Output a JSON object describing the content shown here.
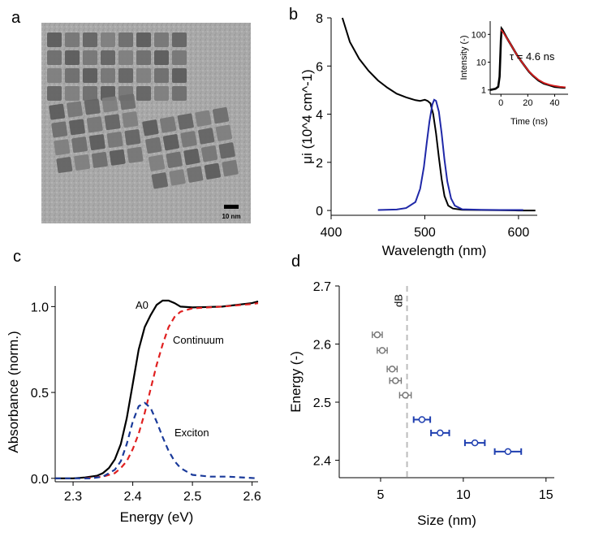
{
  "figure": {
    "panel_letters": [
      "a",
      "b",
      "c",
      "d"
    ],
    "tem": {
      "scale_bar_label": "10 nm"
    }
  },
  "chart_data": [
    {
      "type": "line",
      "panel": "b",
      "xlabel": "Wavelength (nm)",
      "ylabel": "μi (10^4 cm^-1)",
      "xlim": [
        400,
        620
      ],
      "ylim": [
        -0.2,
        8
      ],
      "xticks": [
        400,
        500,
        600
      ],
      "yticks": [
        0,
        2,
        4,
        6,
        8
      ],
      "series": [
        {
          "color": "#000000",
          "x": [
            412,
            420,
            430,
            440,
            450,
            460,
            470,
            480,
            490,
            495,
            500,
            503,
            506,
            509,
            512,
            515,
            518,
            521,
            525,
            530,
            540,
            560,
            580,
            600,
            618
          ],
          "y": [
            8.0,
            7.0,
            6.3,
            5.8,
            5.4,
            5.1,
            4.85,
            4.7,
            4.58,
            4.55,
            4.6,
            4.55,
            4.45,
            4.0,
            3.2,
            2.2,
            1.3,
            0.6,
            0.2,
            0.08,
            0.03,
            0.02,
            0.01,
            0.0,
            0.0
          ]
        },
        {
          "color": "#1f28a8",
          "x": [
            450,
            470,
            480,
            490,
            495,
            499,
            502,
            505,
            508,
            510,
            512,
            515,
            518,
            521,
            524,
            528,
            532,
            540,
            560,
            580,
            605
          ],
          "y": [
            0.02,
            0.04,
            0.1,
            0.35,
            0.9,
            1.8,
            2.8,
            3.7,
            4.4,
            4.6,
            4.55,
            4.1,
            3.2,
            2.1,
            1.2,
            0.5,
            0.2,
            0.05,
            0.03,
            0.02,
            0.02
          ]
        }
      ]
    },
    {
      "type": "line",
      "panel": "b-inset",
      "xlabel": "Time (ns)",
      "ylabel": "Intensity (-)",
      "annotation": "τ = 4.6 ns",
      "xlim": [
        -8,
        50
      ],
      "ylim_log": [
        0.7,
        300
      ],
      "xticks": [
        0,
        20,
        40
      ],
      "yticks": [
        1,
        10,
        100
      ],
      "series": [
        {
          "color": "#000000",
          "x": [
            -8,
            -4,
            -2,
            -1,
            0,
            0.5,
            1,
            2,
            4,
            6,
            8,
            10,
            12,
            15,
            18,
            21,
            24,
            28,
            32,
            36,
            40,
            44,
            48
          ],
          "y": [
            1.0,
            1.1,
            1.3,
            3,
            60,
            160,
            150,
            120,
            80,
            55,
            38,
            26,
            18,
            11,
            7,
            4.5,
            3.2,
            2.2,
            1.7,
            1.5,
            1.3,
            1.25,
            1.2
          ]
        },
        {
          "color": "#d62020",
          "x": [
            0,
            2,
            4,
            6,
            8,
            10,
            12,
            15,
            18,
            21,
            24,
            28,
            32,
            36,
            40,
            44,
            48
          ],
          "y": [
            150,
            110,
            78,
            55,
            38,
            26,
            18,
            11,
            7,
            4.6,
            3.3,
            2.3,
            1.8,
            1.55,
            1.4,
            1.3,
            1.25
          ]
        }
      ]
    },
    {
      "type": "line",
      "panel": "c",
      "xlabel": "Energy (eV)",
      "ylabel": "Absorbance (norm.)",
      "xlim": [
        2.27,
        2.61
      ],
      "ylim": [
        -0.02,
        1.12
      ],
      "xticks": [
        2.3,
        2.4,
        2.5,
        2.6
      ],
      "yticks": [
        0.0,
        0.5,
        1.0
      ],
      "annotations": [
        "A0",
        "Continuum",
        "Exciton"
      ],
      "series": [
        {
          "name": "A0",
          "color": "#000000",
          "x": [
            2.27,
            2.3,
            2.32,
            2.34,
            2.35,
            2.36,
            2.37,
            2.38,
            2.39,
            2.4,
            2.41,
            2.42,
            2.43,
            2.44,
            2.45,
            2.46,
            2.47,
            2.48,
            2.5,
            2.55,
            2.6,
            2.61
          ],
          "y": [
            0.0,
            0.0,
            0.005,
            0.015,
            0.03,
            0.06,
            0.11,
            0.2,
            0.35,
            0.55,
            0.75,
            0.88,
            0.95,
            1.01,
            1.035,
            1.035,
            1.02,
            1.0,
            0.995,
            1.0,
            1.02,
            1.03
          ]
        },
        {
          "name": "Continuum",
          "color": "#e02020",
          "x": [
            2.32,
            2.35,
            2.37,
            2.38,
            2.39,
            2.4,
            2.41,
            2.42,
            2.43,
            2.44,
            2.45,
            2.46,
            2.47,
            2.48,
            2.5,
            2.55,
            2.6,
            2.61
          ],
          "y": [
            0.0,
            0.01,
            0.03,
            0.06,
            0.1,
            0.17,
            0.26,
            0.38,
            0.52,
            0.66,
            0.78,
            0.88,
            0.94,
            0.97,
            0.99,
            1.0,
            1.015,
            1.02
          ]
        },
        {
          "name": "Exciton",
          "color": "#1a3a9a",
          "x": [
            2.27,
            2.3,
            2.33,
            2.35,
            2.37,
            2.38,
            2.39,
            2.4,
            2.41,
            2.42,
            2.43,
            2.44,
            2.45,
            2.46,
            2.47,
            2.48,
            2.5,
            2.53,
            2.56,
            2.61
          ],
          "y": [
            0.0,
            0.0,
            0.0,
            0.01,
            0.05,
            0.1,
            0.2,
            0.33,
            0.42,
            0.44,
            0.41,
            0.33,
            0.24,
            0.16,
            0.1,
            0.06,
            0.02,
            0.01,
            0.01,
            0.0
          ]
        }
      ]
    },
    {
      "type": "scatter",
      "panel": "d",
      "xlabel": "Size (nm)",
      "ylabel": "Energy (-)",
      "xlim": [
        2.5,
        15.5
      ],
      "ylim": [
        2.37,
        2.7
      ],
      "xticks": [
        5,
        10,
        15
      ],
      "yticks": [
        2.4,
        2.5,
        2.6,
        2.7
      ],
      "reference_line": {
        "x": 6.6,
        "label": "dB",
        "color": "#bdbdbd"
      },
      "series": [
        {
          "color": "#777777",
          "points": [
            {
              "x": 4.8,
              "y": 2.616,
              "xerr": 0.3
            },
            {
              "x": 5.1,
              "y": 2.589,
              "xerr": 0.3
            },
            {
              "x": 5.7,
              "y": 2.557,
              "xerr": 0.3
            },
            {
              "x": 5.9,
              "y": 2.537,
              "xerr": 0.35
            },
            {
              "x": 6.5,
              "y": 2.512,
              "xerr": 0.35
            }
          ]
        },
        {
          "color": "#1f3fb0",
          "points": [
            {
              "x": 7.5,
              "y": 2.47,
              "xerr": 0.5
            },
            {
              "x": 8.6,
              "y": 2.447,
              "xerr": 0.55
            },
            {
              "x": 10.7,
              "y": 2.43,
              "xerr": 0.6
            },
            {
              "x": 12.7,
              "y": 2.415,
              "xerr": 0.8
            }
          ]
        }
      ]
    }
  ]
}
